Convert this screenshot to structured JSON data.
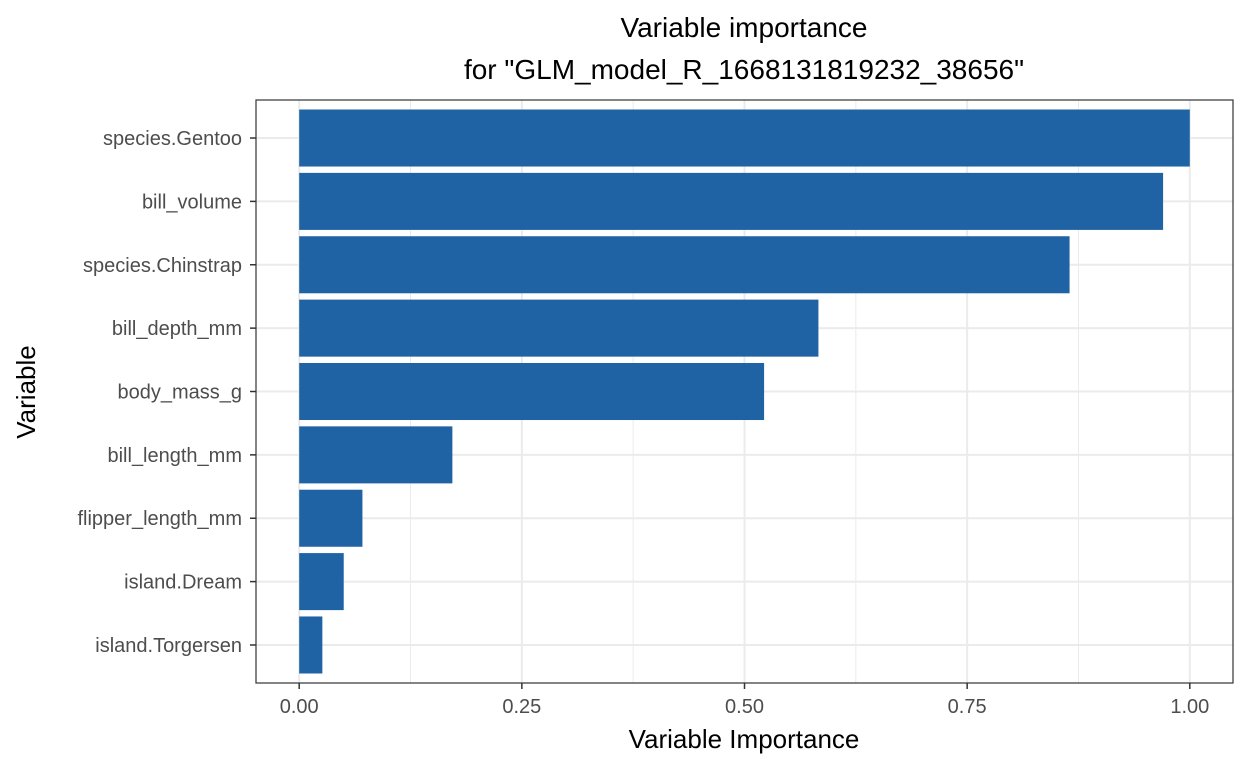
{
  "chart_data": {
    "type": "bar",
    "orientation": "horizontal",
    "title": "Variable importance",
    "subtitle": "for \"GLM_model_R_1668131819232_38656\"",
    "xlabel": "Variable Importance",
    "ylabel": "Variable",
    "categories": [
      "species.Gentoo",
      "bill_volume",
      "species.Chinstrap",
      "bill_depth_mm",
      "body_mass_g",
      "bill_length_mm",
      "flipper_length_mm",
      "island.Dream",
      "island.Torgersen"
    ],
    "values": [
      1.0,
      0.97,
      0.865,
      0.583,
      0.522,
      0.172,
      0.071,
      0.05,
      0.026
    ],
    "xlim": [
      -0.0485,
      1.0485
    ],
    "xticks": [
      0,
      0.25,
      0.5,
      0.75,
      1.0
    ],
    "xtick_labels": [
      "0.00",
      "0.25",
      "0.50",
      "0.75",
      "1.00"
    ],
    "grid": true,
    "bar_color": "#1f63a4"
  }
}
